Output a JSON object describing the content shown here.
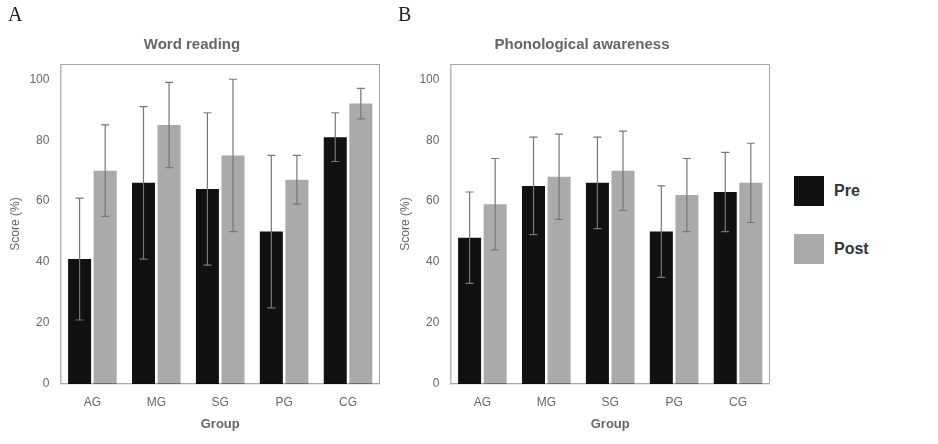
{
  "chart_data": [
    {
      "type": "bar",
      "title": "Word reading",
      "annotations": [
        "A"
      ],
      "categories": [
        "AG",
        "MG",
        "SG",
        "PG",
        "CG"
      ],
      "series": [
        {
          "name": "Pre",
          "color": "#111111",
          "values": [
            41,
            66,
            64,
            50,
            81
          ],
          "errors": [
            20,
            25,
            25,
            25,
            8
          ]
        },
        {
          "name": "Post",
          "color": "#aaaaaa",
          "values": [
            70,
            85,
            75,
            67,
            92
          ],
          "errors": [
            15,
            14,
            25,
            8,
            5
          ]
        }
      ],
      "xlabel": "Group",
      "ylabel": "Score (%)",
      "ylim": [
        0,
        105
      ],
      "yticks": [
        0,
        20,
        40,
        60,
        80,
        100
      ],
      "grid": false,
      "legend": false
    },
    {
      "type": "bar",
      "title": "Phonological awareness",
      "annotations": [
        "B"
      ],
      "categories": [
        "AG",
        "MG",
        "SG",
        "PG",
        "CG"
      ],
      "series": [
        {
          "name": "Pre",
          "color": "#111111",
          "values": [
            48,
            65,
            66,
            50,
            63
          ],
          "errors": [
            15,
            16,
            15,
            15,
            13
          ]
        },
        {
          "name": "Post",
          "color": "#aaaaaa",
          "values": [
            59,
            68,
            70,
            62,
            66
          ],
          "errors": [
            15,
            14,
            13,
            12,
            13
          ]
        }
      ],
      "xlabel": "Group",
      "ylabel": "Score (%)",
      "ylim": [
        0,
        105
      ],
      "yticks": [
        0,
        20,
        40,
        60,
        80,
        100
      ],
      "grid": false,
      "legend": "right"
    }
  ]
}
